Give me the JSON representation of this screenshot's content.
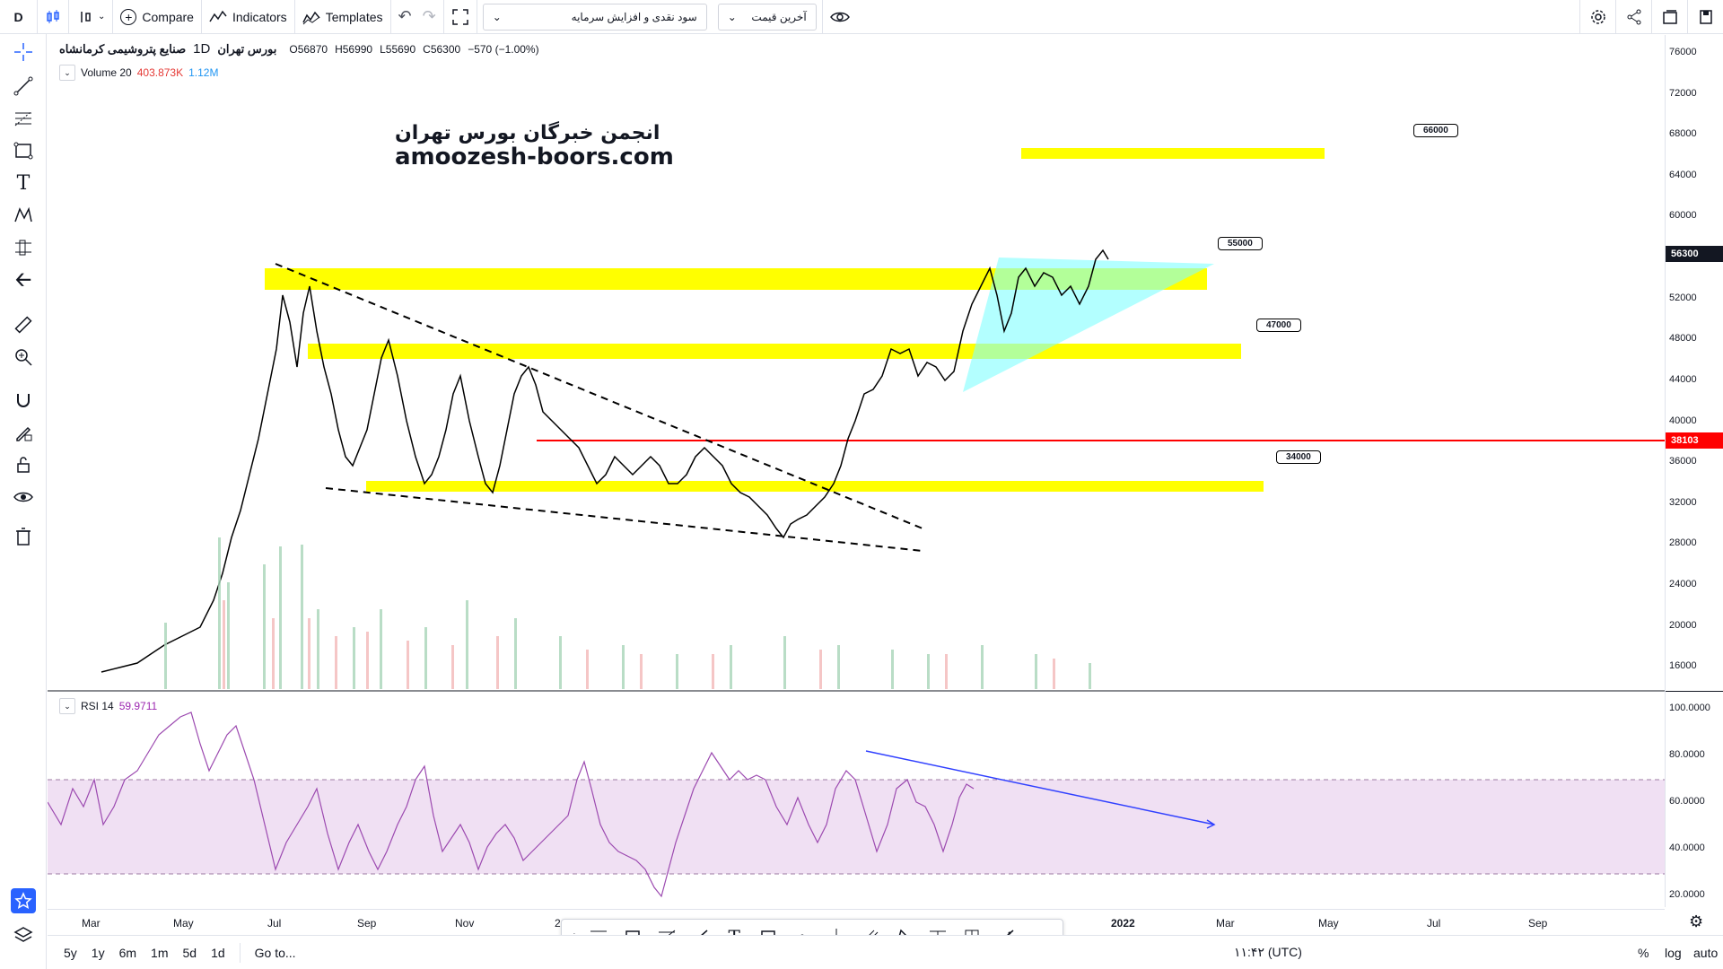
{
  "toolbar": {
    "interval": "D",
    "compare": "Compare",
    "indicators": "Indicators",
    "templates": "Templates",
    "layout_select": "سود نقدی و افزایش سرمایه",
    "price_select": "آخرین قیمت"
  },
  "legend": {
    "exchange": "بورس تهران",
    "interval": "1D",
    "symbol": "صنایع پتروشیمی کرمانشاه",
    "open": "O56870",
    "high": "H56990",
    "low": "L55690",
    "close": "C56300",
    "change": "−570 (−1.00%)",
    "volume_label": "Volume 20",
    "volume_value1": "403.873K",
    "volume_value2": "1.12M",
    "rsi_label": "RSI 14",
    "rsi_value": "59.9711"
  },
  "watermark": {
    "line1": "انجمن خبرگان بورس تهران",
    "line2": "amoozesh-boors.com"
  },
  "price_axis": {
    "ticks": [
      "76000",
      "72000",
      "68000",
      "64000",
      "60000",
      "56000",
      "52000",
      "48000",
      "44000",
      "40000",
      "36000",
      "32000",
      "28000",
      "24000",
      "20000",
      "16000"
    ],
    "rsi_ticks": [
      "100.0000",
      "80.0000",
      "60.0000",
      "40.0000",
      "20.0000"
    ],
    "last_price": "56300",
    "red_line_price": "38103"
  },
  "annotations": {
    "tag_66000": "66000",
    "tag_55000": "55000",
    "tag_47000": "47000",
    "tag_34000": "34000"
  },
  "time_axis": {
    "labels": [
      "Mar",
      "May",
      "Jul",
      "Sep",
      "Nov",
      "2",
      "2022",
      "Mar",
      "May",
      "Jul",
      "Sep"
    ]
  },
  "bottom": {
    "ranges": [
      "5y",
      "1y",
      "6m",
      "1m",
      "5d",
      "1d"
    ],
    "goto": "Go to...",
    "clock": "۱۱:۴۲ (UTC)",
    "percent": "%",
    "log": "log",
    "auto": "auto"
  },
  "colors": {
    "zone_yellow": "#ffff00",
    "red_line": "#ff0000",
    "triangle": "#80ffff",
    "rsi_line": "#9c4ab0",
    "rsi_band": "#f0e0f3",
    "trendline_blue": "#3040ff"
  }
}
